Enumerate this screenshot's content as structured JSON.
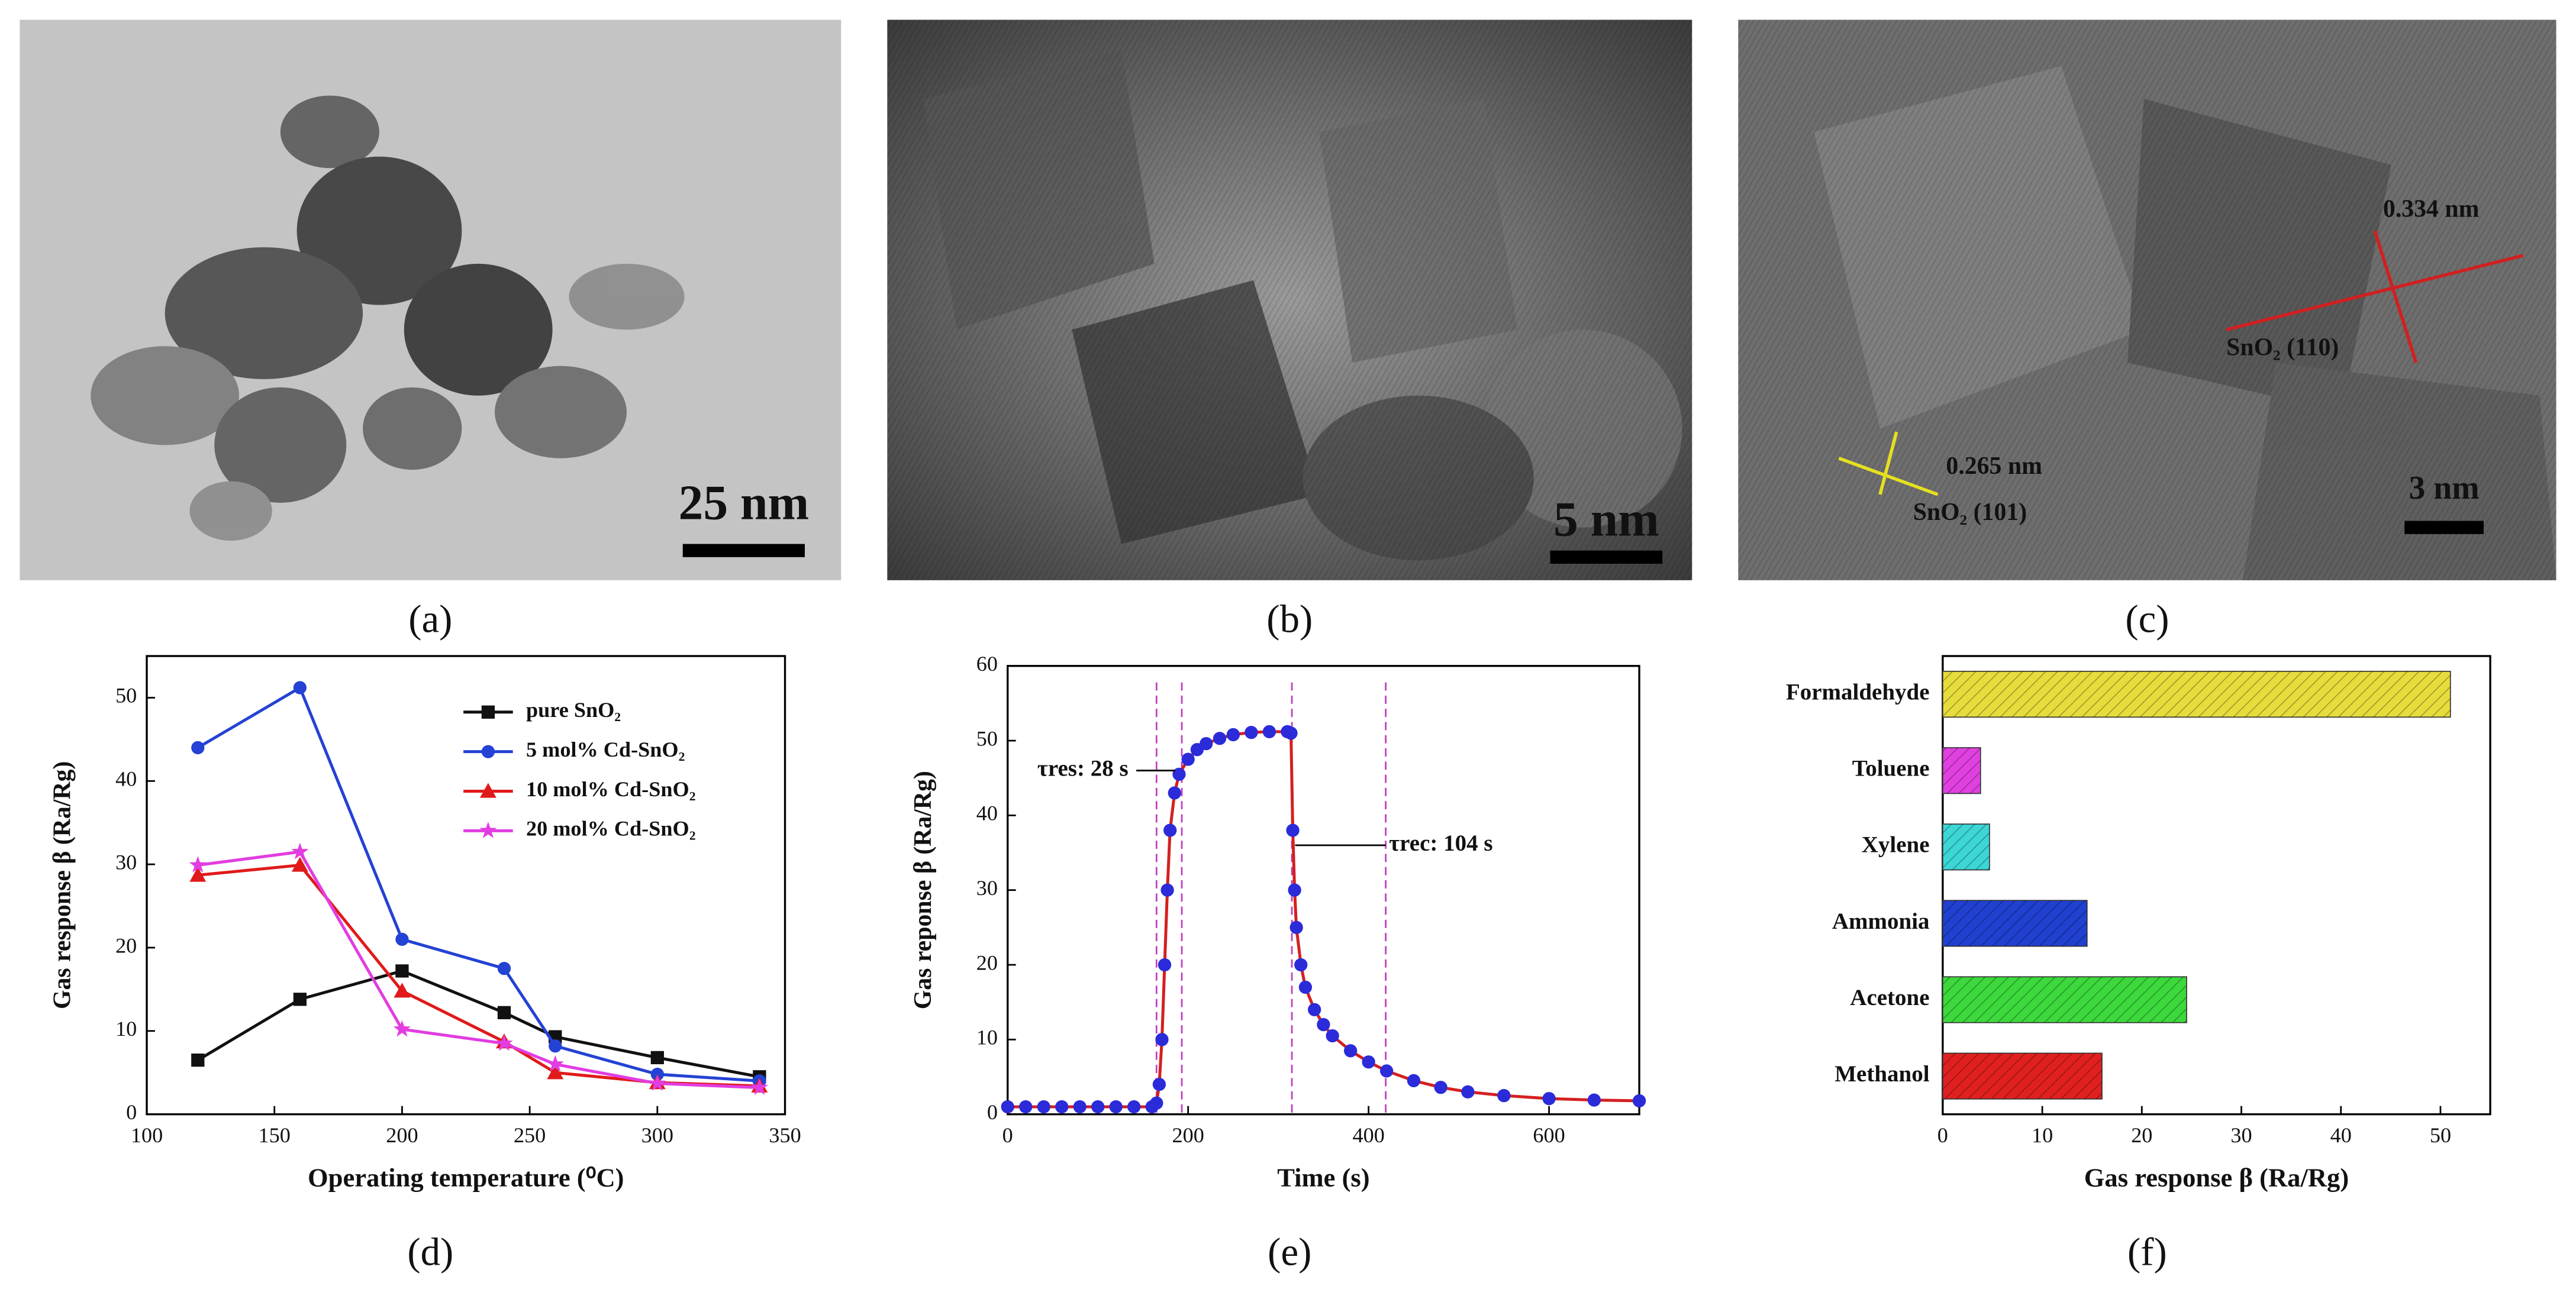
{
  "images": [
    {
      "label": "(a)",
      "scale_bar": "25 nm"
    },
    {
      "label": "(b)",
      "scale_bar": "5 nm"
    },
    {
      "label": "(c)",
      "scale_bar": "3 nm",
      "annotations": [
        "0.334 nm",
        "SnO₂ (110)",
        "0.265 nm",
        "SnO₂ (101)"
      ]
    }
  ],
  "chart_data": [
    {
      "type": "line",
      "label": "(d)",
      "x_label": "Operating temperature  (⁰C)",
      "y_label": "Gas response β  (Ra/Rg)",
      "xlim": [
        100,
        350
      ],
      "xticks": [
        100,
        150,
        200,
        250,
        300,
        350
      ],
      "ylim": [
        0,
        55
      ],
      "yticks": [
        0,
        10,
        20,
        30,
        40,
        50
      ],
      "x": [
        120,
        160,
        200,
        240,
        260,
        300,
        340
      ],
      "series": [
        {
          "name": "pure SnO₂",
          "color": "#111111",
          "marker": "square",
          "values": [
            6.5,
            13.8,
            17.2,
            12.2,
            9.3,
            6.8,
            4.5
          ]
        },
        {
          "name": "5 mol% Cd-SnO₂",
          "color": "#2442d4",
          "marker": "circle",
          "values": [
            44,
            51.2,
            21,
            17.5,
            8.2,
            4.8,
            4.0
          ]
        },
        {
          "name": "10 mol% Cd-SnO₂",
          "color": "#e01a1a",
          "marker": "triangle",
          "values": [
            28.7,
            29.9,
            14.8,
            8.7,
            5.0,
            3.8,
            3.4
          ]
        },
        {
          "name": "20 mol% Cd-SnO₂",
          "color": "#e23ce2",
          "marker": "star",
          "values": [
            29.9,
            31.5,
            10.2,
            8.5,
            6.0,
            3.7,
            3.2
          ]
        }
      ]
    },
    {
      "type": "line",
      "label": "(e)",
      "x_label": "Time  (s)",
      "y_label": "Gas reponse β  (Ra/Rg)",
      "xlim": [
        0,
        700
      ],
      "xticks": [
        0,
        200,
        400,
        600
      ],
      "ylim": [
        0,
        60
      ],
      "yticks": [
        0,
        10,
        20,
        30,
        40,
        50,
        60
      ],
      "x": [
        0,
        20,
        40,
        60,
        80,
        100,
        120,
        140,
        160,
        165,
        168,
        171,
        174,
        177,
        180,
        185,
        190,
        200,
        210,
        220,
        235,
        250,
        270,
        290,
        310,
        314,
        316,
        318,
        320,
        325,
        330,
        340,
        350,
        360,
        380,
        400,
        420,
        450,
        480,
        510,
        550,
        600,
        650,
        700
      ],
      "series": [
        {
          "color": "#2b2bd9",
          "line_color": "#d42020",
          "marker": "circle",
          "values": [
            1,
            1,
            1,
            1,
            1,
            1,
            1,
            1,
            1,
            1.5,
            4,
            10,
            20,
            30,
            38,
            43,
            45.5,
            47.5,
            48.8,
            49.6,
            50.3,
            50.8,
            51.1,
            51.2,
            51.2,
            51,
            38,
            30,
            25,
            20,
            17,
            14,
            12,
            10.5,
            8.5,
            7,
            5.8,
            4.5,
            3.6,
            3,
            2.5,
            2.1,
            1.9,
            1.8
          ]
        }
      ],
      "vlines": [
        165,
        193,
        315,
        419
      ],
      "annotations": [
        "τres: 28 s",
        "τrec: 104 s"
      ]
    },
    {
      "type": "hbar",
      "label": "(f)",
      "x_label": "Gas response β  (Ra/Rg)",
      "xlim": [
        0,
        55
      ],
      "xticks": [
        0,
        10,
        20,
        30,
        40,
        50
      ],
      "categories": [
        "Formaldehyde",
        "Toluene",
        "Xylene",
        "Ammonia",
        "Acetone",
        "Methanol"
      ],
      "values": [
        51,
        3.8,
        4.7,
        14.5,
        24.5,
        16
      ],
      "colors": [
        "#e6dc3c",
        "#e040e0",
        "#3cd6d6",
        "#2040d0",
        "#3cd83c",
        "#e02020"
      ]
    }
  ]
}
